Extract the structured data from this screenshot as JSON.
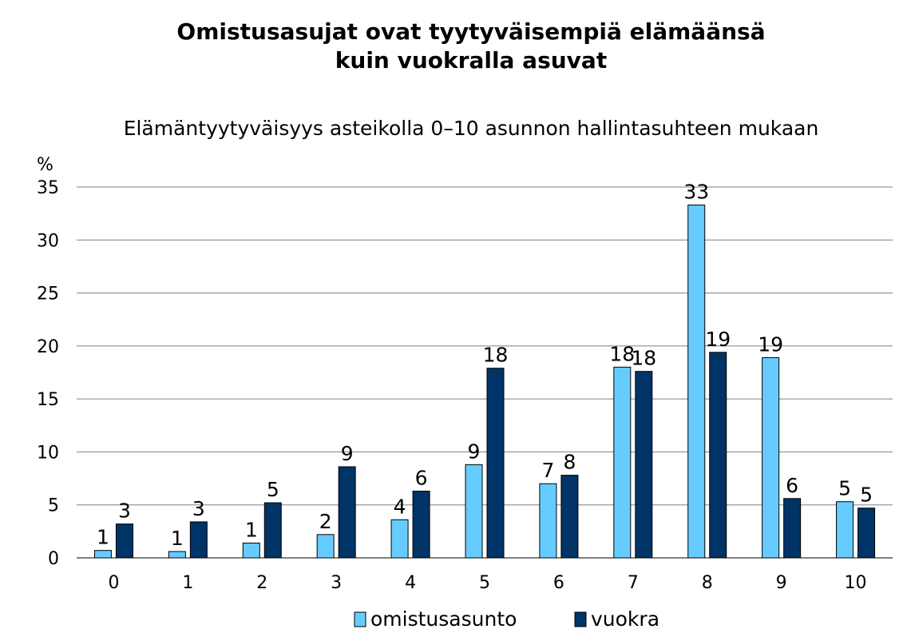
{
  "chart_data": {
    "type": "bar",
    "title_lines": [
      "Omistusasujat ovat tyytyväisempiä elämäänsä",
      "kuin vuokralla asuvat"
    ],
    "subtitle": "Elämäntyytyväisyys asteikolla 0–10 asunnon hallintasuhteen mukaan",
    "ylabel": "%",
    "xlabel": "",
    "ylim": [
      0,
      35
    ],
    "yticks": [
      0,
      5,
      10,
      15,
      20,
      25,
      30,
      35
    ],
    "grid": true,
    "legend_position": "bottom",
    "categories": [
      "0",
      "1",
      "2",
      "3",
      "4",
      "5",
      "6",
      "7",
      "8",
      "9",
      "10"
    ],
    "series": [
      {
        "name": "omistusasunto",
        "color": "#66ccff",
        "values": [
          0.7,
          0.6,
          1.4,
          2.2,
          3.6,
          8.8,
          7.0,
          18.0,
          33.3,
          18.9,
          5.3
        ],
        "labels": [
          "1",
          "1",
          "1",
          "2",
          "4",
          "9",
          "7",
          "18",
          "33",
          "19",
          "5"
        ]
      },
      {
        "name": "vuokra",
        "color": "#003366",
        "values": [
          3.2,
          3.4,
          5.2,
          8.6,
          6.3,
          17.9,
          7.8,
          17.6,
          19.4,
          5.6,
          4.7
        ],
        "labels": [
          "3",
          "3",
          "5",
          "9",
          "6",
          "18",
          "8",
          "18",
          "19",
          "6",
          "5"
        ]
      }
    ]
  }
}
